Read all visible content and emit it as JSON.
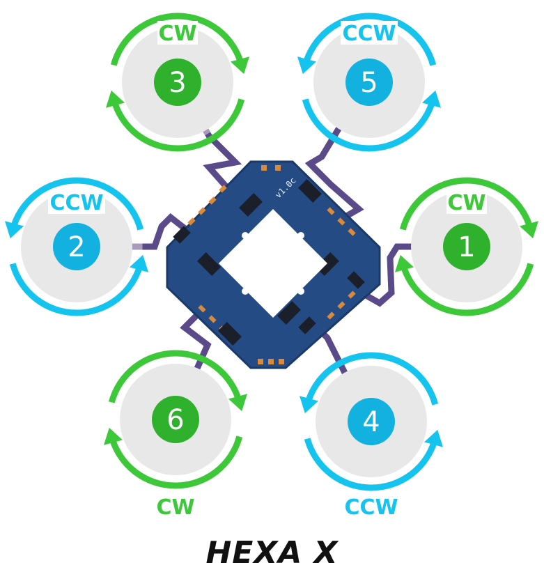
{
  "title": "HEXA X",
  "colors": {
    "cw": "#3dc83a",
    "ccw": "#15c3ef",
    "cw_badge": "#2fb12d",
    "ccw_badge": "#12b1e0",
    "prop_disc": "#e8e8e8",
    "arm": "#5a4a8a",
    "arm_light": "#a99cbb",
    "board": "#254b85"
  },
  "motors": [
    {
      "id": "motor-3",
      "number": "3",
      "direction": "CW"
    },
    {
      "id": "motor-5",
      "number": "5",
      "direction": "CCW"
    },
    {
      "id": "motor-2",
      "number": "2",
      "direction": "CCW"
    },
    {
      "id": "motor-1",
      "number": "1",
      "direction": "CW"
    },
    {
      "id": "motor-6",
      "number": "6",
      "direction": "CW"
    },
    {
      "id": "motor-4",
      "number": "4",
      "direction": "CCW"
    }
  ],
  "board": {
    "version": "v1.0c"
  }
}
